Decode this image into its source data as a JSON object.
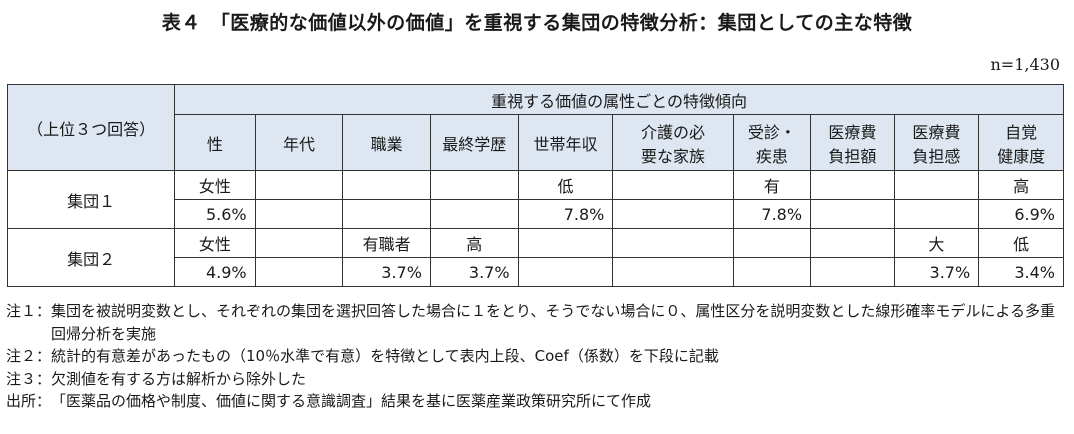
{
  "title": "表４　「医療的な価値以外の価値」を重視する集団の特徴分析：集団としての主な特徴",
  "n_label": "n=1,430",
  "table": {
    "row_header": "（上位３つ回答）",
    "group_header": "重視する価値の属性ごとの特徴傾向",
    "columns": [
      "性",
      "年代",
      "職業",
      "最終学歴",
      "世帯年収",
      "介護の必\n要な家族",
      "受診・\n疾患",
      "医療費\n負担額",
      "医療費\n負担感",
      "自覚\n健康度"
    ],
    "rows": [
      {
        "label": "集団１",
        "top": [
          "女性",
          "",
          "",
          "",
          "低",
          "",
          "有",
          "",
          "",
          "高"
        ],
        "bottom": [
          "5.6%",
          "",
          "",
          "",
          "7.8%",
          "",
          "7.8%",
          "",
          "",
          "6.9%"
        ]
      },
      {
        "label": "集団２",
        "top": [
          "女性",
          "",
          "有職者",
          "高",
          "",
          "",
          "",
          "",
          "大",
          "低"
        ],
        "bottom": [
          "4.9%",
          "",
          "3.7%",
          "3.7%",
          "",
          "",
          "",
          "",
          "3.7%",
          "3.4%"
        ]
      }
    ]
  },
  "notes": [
    {
      "key": "注１：",
      "text": "集団を被説明変数とし、それぞれの集団を選択回答した場合に１をとり、そうでない場合に０、属性区分を説明変数とした線形確率モデルによる多重回帰分析を実施"
    },
    {
      "key": "注２：",
      "text": "統計的有意差があったもの（10％水準で有意）を特徴として表内上段、Coef（係数）を下段に記載"
    },
    {
      "key": "注３：",
      "text": "欠測値を有する方は解析から除外した"
    },
    {
      "key": "出所：",
      "text": "「医薬品の価格や制度、価値に関する意識調査」結果を基に医薬産業政策研究所にて作成"
    }
  ]
}
